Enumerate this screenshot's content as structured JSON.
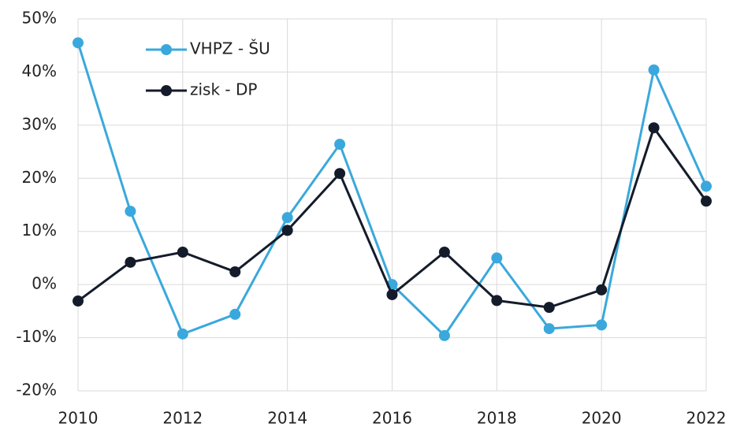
{
  "chart_data": {
    "type": "line",
    "x": [
      2010,
      2011,
      2012,
      2013,
      2014,
      2015,
      2016,
      2017,
      2018,
      2019,
      2020,
      2021,
      2022
    ],
    "series": [
      {
        "name": "VHPZ - ŠU",
        "color": "#3aa8dc",
        "values": [
          45.5,
          13.8,
          -9.3,
          -5.6,
          12.6,
          26.4,
          0,
          -9.6,
          5.0,
          -8.3,
          -7.6,
          40.4,
          18.5
        ]
      },
      {
        "name": "zisk - DP",
        "color": "#141c2b",
        "values": [
          -3.1,
          4.2,
          6.1,
          2.4,
          10.2,
          20.9,
          -1.9,
          6.1,
          -3.0,
          -4.3,
          -1.0,
          29.5,
          15.7
        ]
      }
    ],
    "xlim": [
      2010,
      2022
    ],
    "xticks": [
      2010,
      2012,
      2014,
      2016,
      2018,
      2020,
      2022
    ],
    "ylim": [
      -20,
      50
    ],
    "yticks": [
      {
        "value": -20,
        "label": "-20%"
      },
      {
        "value": -10,
        "label": "-10%"
      },
      {
        "value": 0,
        "label": "0%"
      },
      {
        "value": 10,
        "label": "10%"
      },
      {
        "value": 20,
        "label": "20%"
      },
      {
        "value": 30,
        "label": "30%"
      },
      {
        "value": 40,
        "label": "40%"
      },
      {
        "value": 50,
        "label": "50%"
      }
    ],
    "grid": true,
    "legend": "upper left"
  }
}
